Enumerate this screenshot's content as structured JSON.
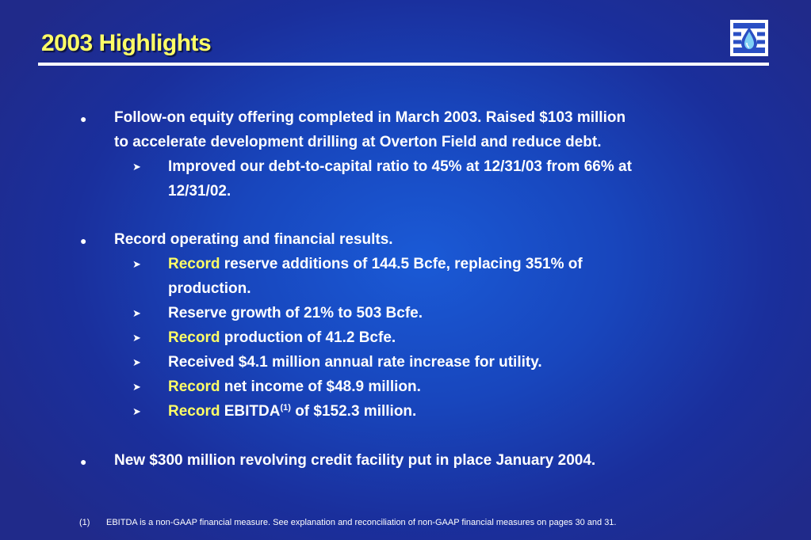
{
  "title": "2003 Highlights",
  "logo": {
    "icon": "water-drop-logo-icon",
    "color": "#ffffff",
    "accent": "#2a4fc4"
  },
  "colors": {
    "background": "#1a3fb3",
    "title": "#ffff66",
    "highlight": "#ffff66",
    "text": "#ffffff"
  },
  "bullet_glyph": "●",
  "arrow_glyph": "➤",
  "bullets": [
    {
      "lines": [
        "Follow-on equity offering completed in March 2003.  Raised $103 million",
        "to accelerate development drilling at Overton Field and reduce debt."
      ],
      "subs": [
        {
          "lines": [
            "Improved our debt-to-capital ratio to 45% at 12/31/03 from 66% at",
            "12/31/02."
          ]
        }
      ]
    },
    {
      "lines": [
        "Record operating and financial results."
      ],
      "subs": [
        {
          "highlight": "Record",
          "lines": [
            " reserve additions of 144.5 Bcfe, replacing 351% of",
            "production."
          ]
        },
        {
          "lines": [
            "Reserve growth of 21% to 503 Bcfe."
          ]
        },
        {
          "highlight": "Record",
          "lines": [
            " production of 41.2 Bcfe."
          ]
        },
        {
          "lines": [
            "Received $4.1 million annual rate increase for utility."
          ]
        },
        {
          "highlight": "Record",
          "lines": [
            " net income of $48.9 million."
          ]
        },
        {
          "highlight": "Record",
          "text_before_ref": " EBITDA",
          "ref": "(1)",
          "text_after_ref": " of $152.3 million."
        }
      ]
    },
    {
      "lines": [
        "New $300 million revolving credit facility put in place January 2004."
      ]
    }
  ],
  "footnote": {
    "number": "(1)",
    "text": "EBITDA is a non-GAAP financial measure.  See explanation and reconciliation of non-GAAP financial measures on pages 30 and 31."
  }
}
